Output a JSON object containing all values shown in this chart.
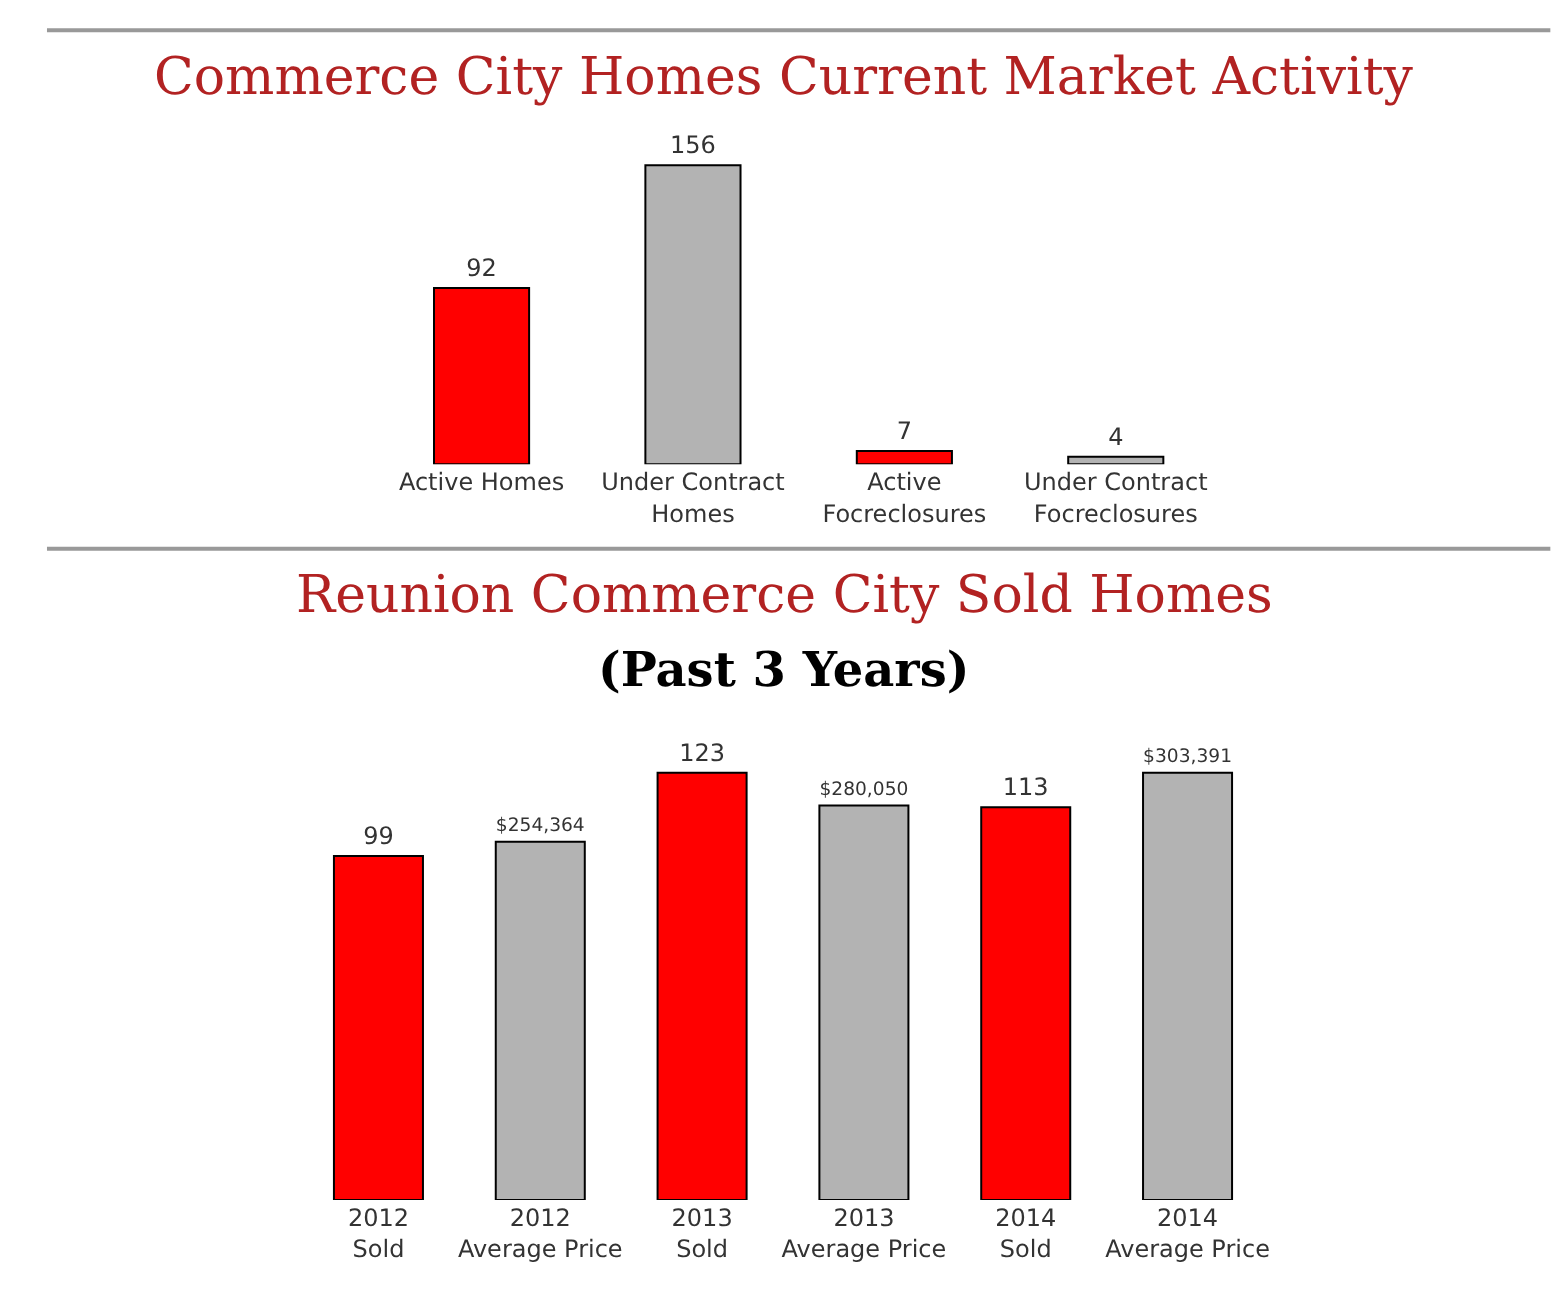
{
  "chart_data": [
    {
      "type": "bar",
      "title": "Commerce City Homes Current Market Activity",
      "categories": [
        "Active Homes",
        "Under Contract Homes",
        "Active Focreclosures",
        "Under Contract Focreclosures"
      ],
      "values": [
        92,
        156,
        7,
        4
      ],
      "colors": [
        "#ff0000",
        "#b3b3b3",
        "#ff0000",
        "#b3b3b3"
      ],
      "data_labels": true
    },
    {
      "type": "bar",
      "title": "Reunion Commerce City Sold Homes",
      "subtitle": "(Past 3 Years)",
      "categories": [
        "2012 Sold",
        "2012 Average Price",
        "2013 Sold",
        "2013 Average Price",
        "2014 Sold",
        "2014 Average Price"
      ],
      "series": [
        {
          "color": "#ff0000",
          "values": [
            99,
            null,
            123,
            null,
            113,
            null
          ],
          "value_labels": [
            "99",
            null,
            "123",
            null,
            "113",
            null
          ]
        },
        {
          "color": "#b3b3b3",
          "axis": "y2",
          "values": [
            null,
            254364,
            null,
            280050,
            null,
            303391
          ],
          "value_labels": [
            null,
            "$254,364",
            null,
            "$280,050",
            null,
            "$303,391"
          ]
        }
      ]
    }
  ]
}
